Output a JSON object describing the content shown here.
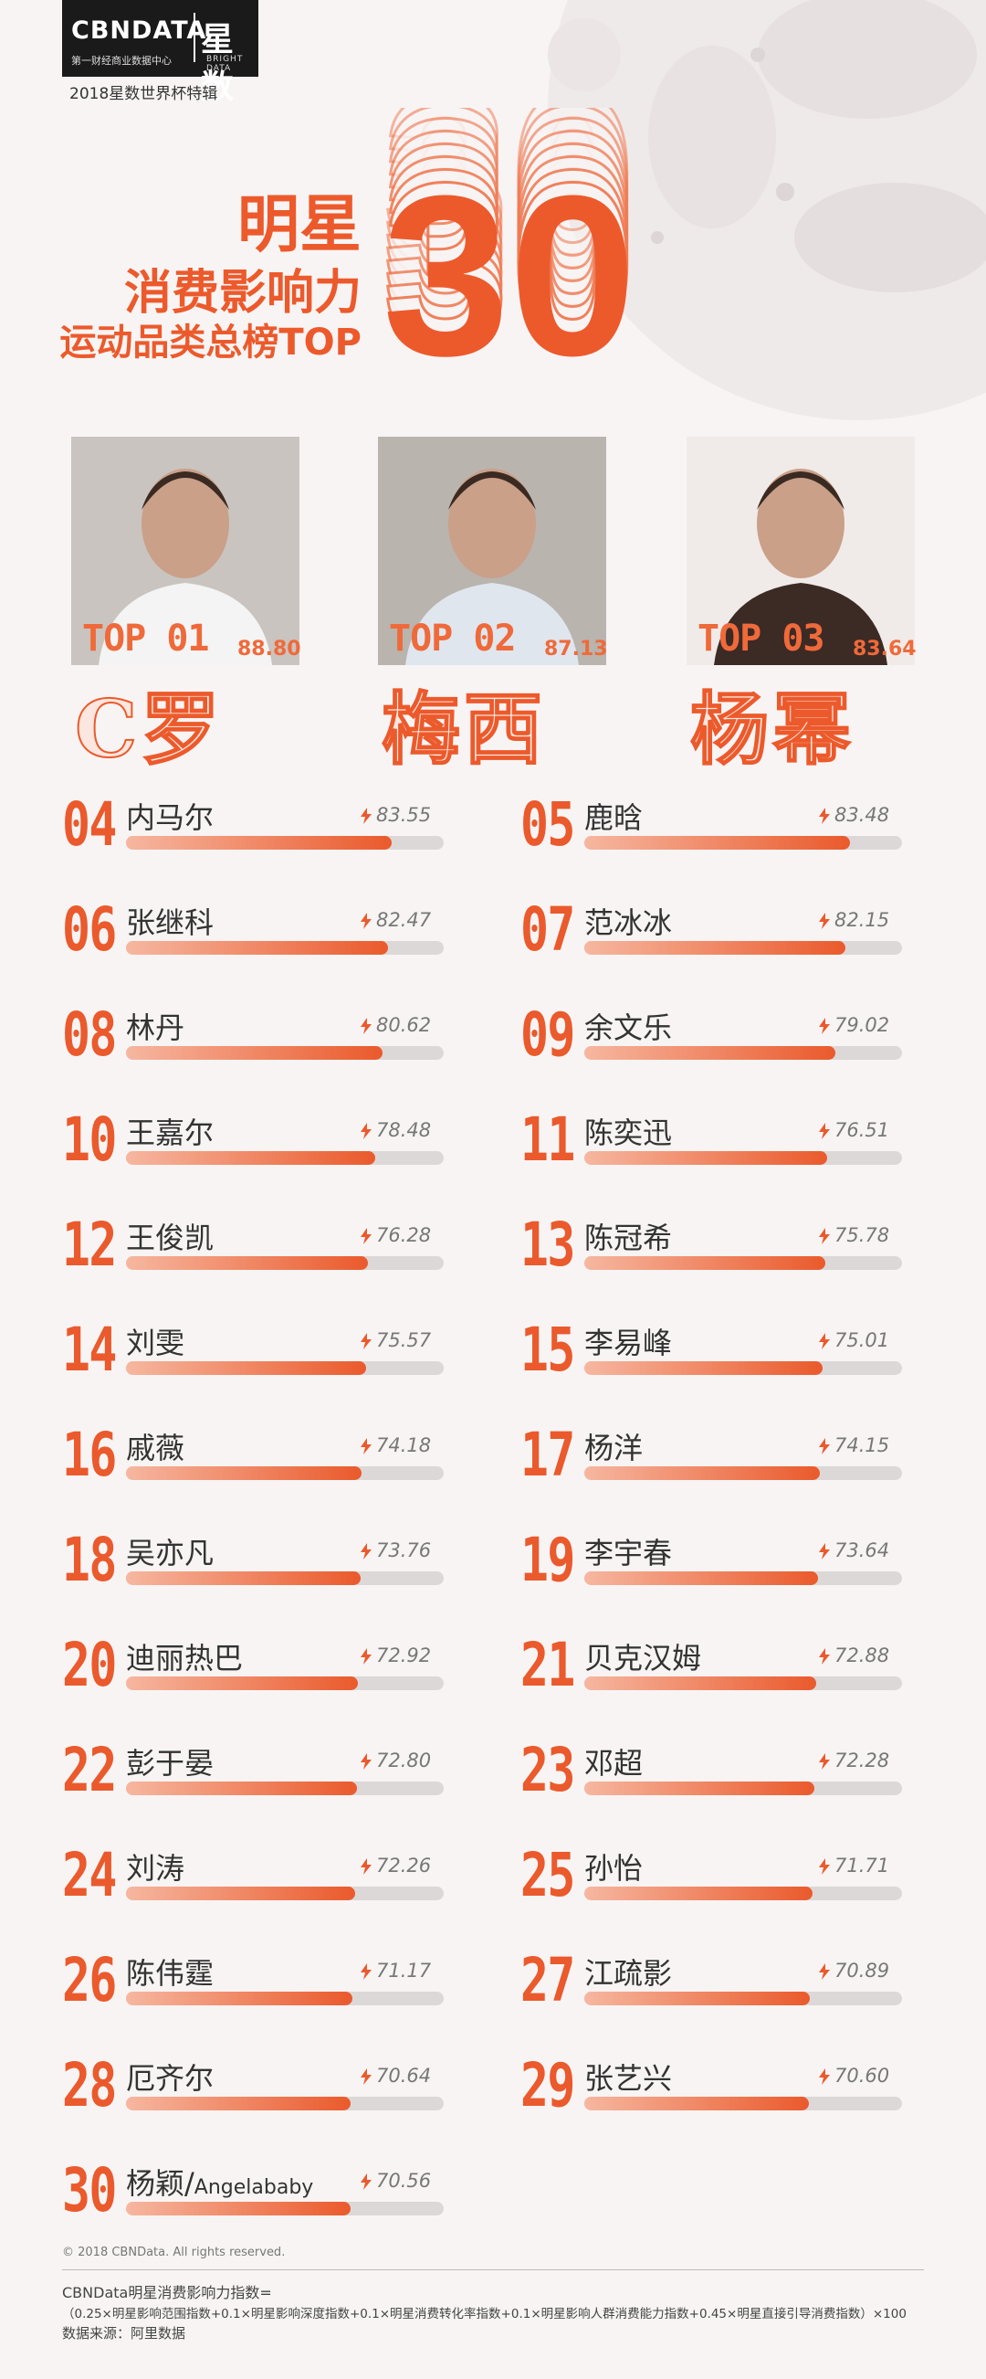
{
  "brand": {
    "name": "CBNDATA",
    "subtitle": "第一财经商业数据中心",
    "cn_name": "星数",
    "en_name": "BRIGHT DATA",
    "edition": "2018星数世界杯特辑"
  },
  "header": {
    "title_line1": "明星",
    "title_line2": "消费影响力",
    "title_line3": "运动品类总榜TOP",
    "big_number": "30"
  },
  "colors": {
    "accent": "#ea5a2c",
    "track": "#ddd8d8",
    "background": "#f8f4f4"
  },
  "top3": [
    {
      "rank": "TOP 01",
      "score": "88.80",
      "name": "C罗",
      "photo": "photo of man in white shirt"
    },
    {
      "rank": "TOP 02",
      "score": "87.13",
      "name": "梅西",
      "photo": "photo of man in striped jersey"
    },
    {
      "rank": "TOP 03",
      "score": "83.64",
      "name": "杨幂",
      "photo": "photo of smiling woman"
    }
  ],
  "ranking": {
    "bar_max_score": 100,
    "items": [
      {
        "rank": "04",
        "name": "内马尔",
        "score": "83.55"
      },
      {
        "rank": "05",
        "name": "鹿晗",
        "score": "83.48"
      },
      {
        "rank": "06",
        "name": "张继科",
        "score": "82.47"
      },
      {
        "rank": "07",
        "name": "范冰冰",
        "score": "82.15"
      },
      {
        "rank": "08",
        "name": "林丹",
        "score": "80.62"
      },
      {
        "rank": "09",
        "name": "余文乐",
        "score": "79.02"
      },
      {
        "rank": "10",
        "name": "王嘉尔",
        "score": "78.48"
      },
      {
        "rank": "11",
        "name": "陈奕迅",
        "score": "76.51"
      },
      {
        "rank": "12",
        "name": "王俊凯",
        "score": "76.28"
      },
      {
        "rank": "13",
        "name": "陈冠希",
        "score": "75.78"
      },
      {
        "rank": "14",
        "name": "刘雯",
        "score": "75.57"
      },
      {
        "rank": "15",
        "name": "李易峰",
        "score": "75.01"
      },
      {
        "rank": "16",
        "name": "戚薇",
        "score": "74.18"
      },
      {
        "rank": "17",
        "name": "杨洋",
        "score": "74.15"
      },
      {
        "rank": "18",
        "name": "吴亦凡",
        "score": "73.76"
      },
      {
        "rank": "19",
        "name": "李宇春",
        "score": "73.64"
      },
      {
        "rank": "20",
        "name": "迪丽热巴",
        "score": "72.92"
      },
      {
        "rank": "21",
        "name": "贝克汉姆",
        "score": "72.88"
      },
      {
        "rank": "22",
        "name": "彭于晏",
        "score": "72.80"
      },
      {
        "rank": "23",
        "name": "邓超",
        "score": "72.28"
      },
      {
        "rank": "24",
        "name": "刘涛",
        "score": "72.26"
      },
      {
        "rank": "25",
        "name": "孙怡",
        "score": "71.71"
      },
      {
        "rank": "26",
        "name": "陈伟霆",
        "score": "71.17"
      },
      {
        "rank": "27",
        "name": "江疏影",
        "score": "70.89"
      },
      {
        "rank": "28",
        "name": "厄齐尔",
        "score": "70.64"
      },
      {
        "rank": "29",
        "name": "张艺兴",
        "score": "70.60"
      },
      {
        "rank": "30",
        "name": "杨颖/",
        "name_en": "Angelababy",
        "score": "70.56"
      }
    ]
  },
  "footer": {
    "copyright": "© 2018 CBNData. All rights reserved.",
    "formula_label": "CBNData明星消费影响力指数=",
    "formula": "（0.25×明星影响范围指数+0.1×明星影响深度指数+0.1×明星消费转化率指数+0.1×明星影响人群消费能力指数+0.45×明星直接引导消费指数）×100",
    "source": "数据来源：阿里数据"
  }
}
